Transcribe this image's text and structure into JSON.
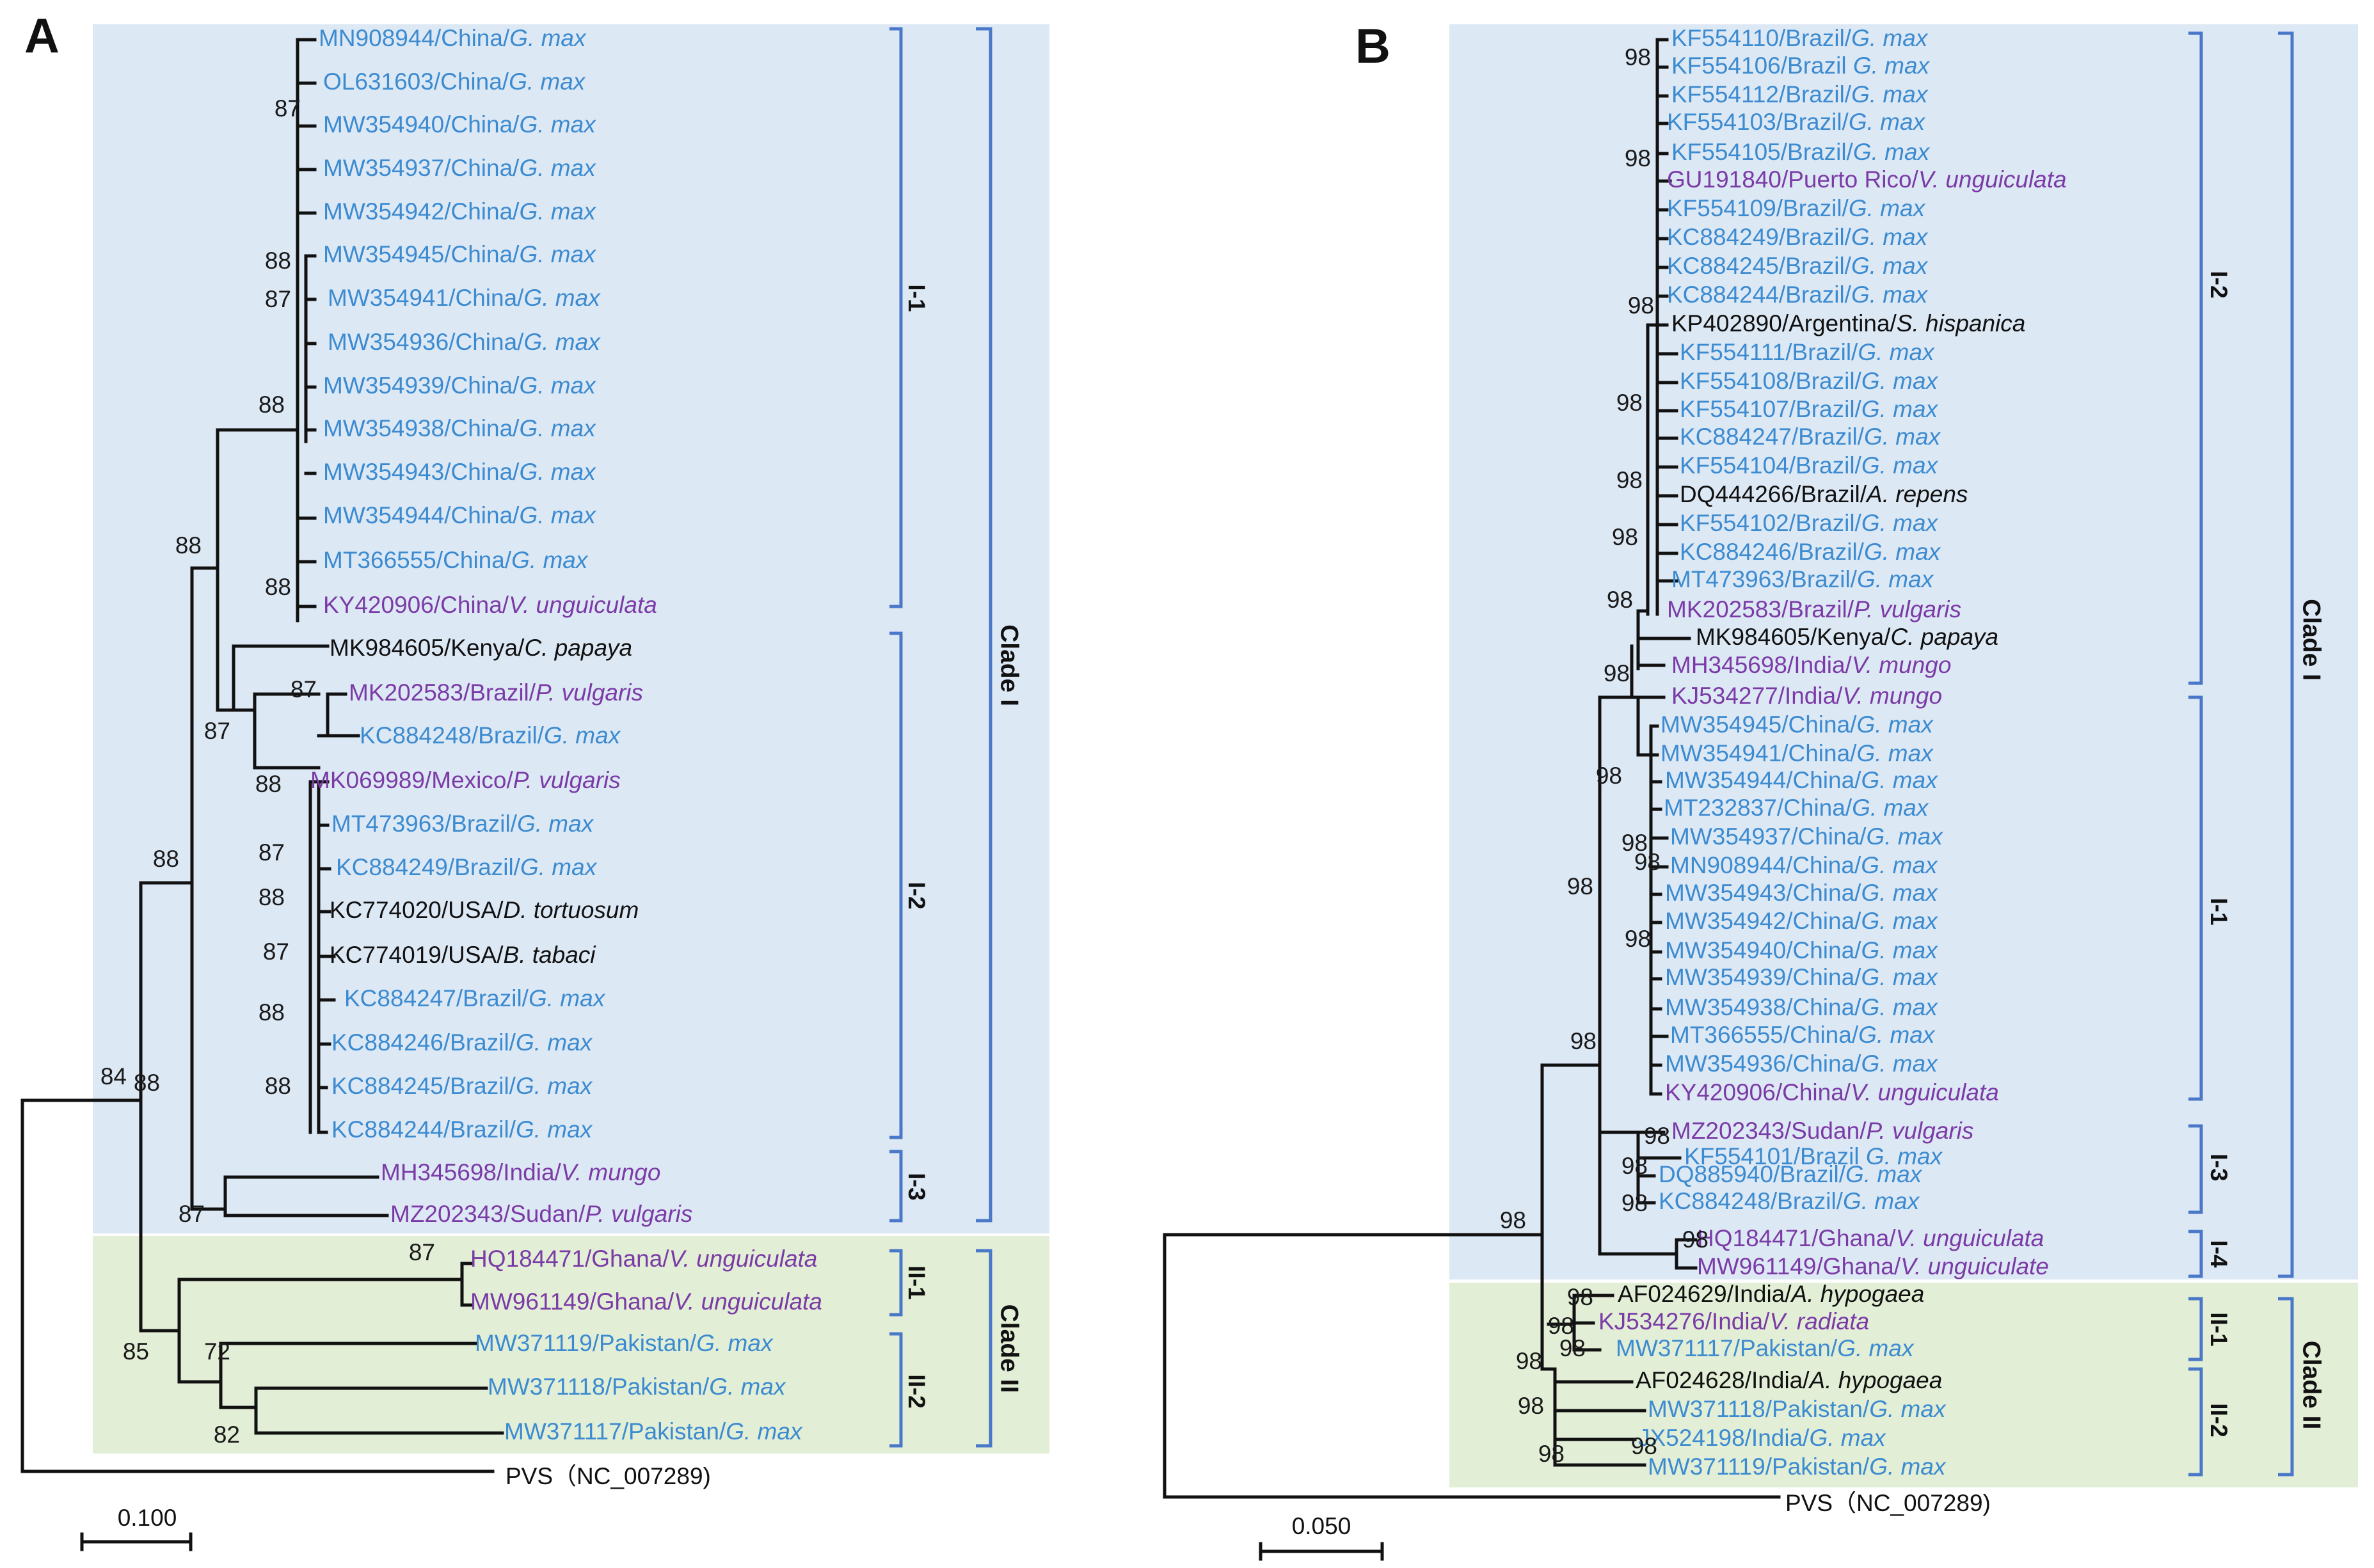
{
  "colors": {
    "china_soy": "#3c8bd0",
    "other_host": "#7b3ba6",
    "black": "#111111",
    "clade1_bg": "#dde8f5",
    "clade2_bg": "#e2eed6",
    "bracket": "#4a78c8"
  },
  "panelA": {
    "letter": "A",
    "scale_label": "0.100",
    "outgroup": "PVS（NC_007289)",
    "tips": [
      {
        "acc": "MN908944/China/",
        "host": "G. max",
        "color": "china_soy"
      },
      {
        "acc": "OL631603/China/",
        "host": "G. max",
        "color": "china_soy"
      },
      {
        "acc": "MW354940/China/",
        "host": "G. max",
        "color": "china_soy"
      },
      {
        "acc": "MW354937/China/",
        "host": "G. max",
        "color": "china_soy"
      },
      {
        "acc": "MW354942/China/",
        "host": "G. max",
        "color": "china_soy"
      },
      {
        "acc": "MW354945/China/",
        "host": "G. max",
        "color": "china_soy"
      },
      {
        "acc": "MW354941/China/",
        "host": "G. max",
        "color": "china_soy"
      },
      {
        "acc": "MW354936/China/",
        "host": "G. max",
        "color": "china_soy"
      },
      {
        "acc": "MW354939/China/",
        "host": "G. max",
        "color": "china_soy"
      },
      {
        "acc": "MW354938/China/",
        "host": "G. max",
        "color": "china_soy"
      },
      {
        "acc": "MW354943/China/",
        "host": "G. max",
        "color": "china_soy"
      },
      {
        "acc": "MW354944/China/",
        "host": "G. max",
        "color": "china_soy"
      },
      {
        "acc": "MT366555/China/",
        "host": "G. max",
        "color": "china_soy"
      },
      {
        "acc": "KY420906/China/",
        "host": "V. unguiculata",
        "color": "other_host"
      },
      {
        "acc": "MK984605/Kenya/",
        "host": "C. papaya",
        "color": "black"
      },
      {
        "acc": "MK202583/Brazil/",
        "host": "P. vulgaris",
        "color": "other_host"
      },
      {
        "acc": "KC884248/Brazil/",
        "host": "G. max",
        "color": "china_soy"
      },
      {
        "acc": "MK069989/Mexico/",
        "host": "P. vulgaris",
        "color": "other_host"
      },
      {
        "acc": "MT473963/Brazil/",
        "host": "G. max",
        "color": "china_soy"
      },
      {
        "acc": "KC884249/Brazil/",
        "host": "G. max",
        "color": "china_soy"
      },
      {
        "acc": "KC774020/USA/",
        "host": "D. tortuosum",
        "color": "black"
      },
      {
        "acc": "KC774019/USA/",
        "host": "B. tabaci",
        "color": "black"
      },
      {
        "acc": "KC884247/Brazil/",
        "host": "G. max",
        "color": "china_soy"
      },
      {
        "acc": "KC884246/Brazil/",
        "host": "G. max",
        "color": "china_soy"
      },
      {
        "acc": "KC884245/Brazil/",
        "host": "G. max",
        "color": "china_soy"
      },
      {
        "acc": "KC884244/Brazil/",
        "host": "G. max",
        "color": "china_soy"
      },
      {
        "acc": "MH345698/India/",
        "host": "V. mungo",
        "color": "other_host"
      },
      {
        "acc": "MZ202343/Sudan/",
        "host": "P. vulgaris",
        "color": "other_host"
      },
      {
        "acc": "HQ184471/Ghana/",
        "host": "V. unguiculata",
        "color": "other_host"
      },
      {
        "acc": "MW961149/Ghana/",
        "host": "V. unguiculata",
        "color": "other_host"
      },
      {
        "acc": "MW371119/Pakistan/",
        "host": "G. max",
        "color": "china_soy"
      },
      {
        "acc": "MW371118/Pakistan/",
        "host": "G. max",
        "color": "china_soy"
      },
      {
        "acc": "MW371117/Pakistan/",
        "host": "G. max",
        "color": "china_soy"
      }
    ],
    "bootstraps": [
      "87",
      "88",
      "87",
      "88",
      "88",
      "88",
      "87",
      "87",
      "88",
      "87",
      "88",
      "88",
      "87",
      "88",
      "88",
      "88",
      "87",
      "72",
      "82",
      "85",
      "84"
    ],
    "groups": [
      "I-1",
      "I-2",
      "I-3",
      "II-1",
      "II-2"
    ],
    "clades": [
      "Clade I",
      "Clade II"
    ]
  },
  "panelB": {
    "letter": "B",
    "scale_label": "0.050",
    "outgroup": "PVS（NC_007289)",
    "tips": [
      {
        "acc": "KF554110/Brazil/",
        "host": "G. max",
        "color": "china_soy"
      },
      {
        "acc": "KF554106/Brazil ",
        "host": "G. max",
        "color": "china_soy"
      },
      {
        "acc": "KF554112/Brazil/",
        "host": "G. max",
        "color": "china_soy"
      },
      {
        "acc": "KF554103/Brazil/",
        "host": "G. max",
        "color": "china_soy"
      },
      {
        "acc": "KF554105/Brazil/",
        "host": "G. max",
        "color": "china_soy"
      },
      {
        "acc": "GU191840/Puerto Rico/",
        "host": "V. unguiculata",
        "color": "other_host"
      },
      {
        "acc": "KF554109/Brazil/",
        "host": "G. max",
        "color": "china_soy"
      },
      {
        "acc": "KC884249/Brazil/",
        "host": "G. max",
        "color": "china_soy"
      },
      {
        "acc": "KC884245/Brazil/",
        "host": "G. max",
        "color": "china_soy"
      },
      {
        "acc": "KC884244/Brazil/",
        "host": "G. max",
        "color": "china_soy"
      },
      {
        "acc": "KP402890/Argentina/",
        "host": "S. hispanica",
        "color": "black"
      },
      {
        "acc": "KF554111/Brazil/",
        "host": "G. max",
        "color": "china_soy"
      },
      {
        "acc": "KF554108/Brazil/",
        "host": "G. max",
        "color": "china_soy"
      },
      {
        "acc": "KF554107/Brazil/",
        "host": "G. max",
        "color": "china_soy"
      },
      {
        "acc": "KC884247/Brazil/",
        "host": "G. max",
        "color": "china_soy"
      },
      {
        "acc": "KF554104/Brazil/",
        "host": "G. max",
        "color": "china_soy"
      },
      {
        "acc": "DQ444266/Brazil/",
        "host": "A. repens",
        "color": "black"
      },
      {
        "acc": "KF554102/Brazil/",
        "host": "G. max",
        "color": "china_soy"
      },
      {
        "acc": "KC884246/Brazil/",
        "host": "G. max",
        "color": "china_soy"
      },
      {
        "acc": "MT473963/Brazil/",
        "host": "G. max",
        "color": "china_soy"
      },
      {
        "acc": "MK202583/Brazil/",
        "host": "P. vulgaris",
        "color": "other_host"
      },
      {
        "acc": "MK984605/Kenya/",
        "host": "C. papaya",
        "color": "black"
      },
      {
        "acc": "MH345698/India/",
        "host": "V. mungo",
        "color": "other_host"
      },
      {
        "acc": "KJ534277/India/",
        "host": "V. mungo",
        "color": "other_host"
      },
      {
        "acc": "MW354945/China/",
        "host": "G. max",
        "color": "china_soy"
      },
      {
        "acc": "MW354941/China/",
        "host": "G. max",
        "color": "china_soy"
      },
      {
        "acc": "MW354944/China/",
        "host": "G. max",
        "color": "china_soy"
      },
      {
        "acc": "MT232837/China/",
        "host": "G. max",
        "color": "china_soy"
      },
      {
        "acc": "MW354937/China/",
        "host": "G. max",
        "color": "china_soy"
      },
      {
        "acc": "MN908944/China/",
        "host": "G. max",
        "color": "china_soy"
      },
      {
        "acc": "MW354943/China/",
        "host": "G. max",
        "color": "china_soy"
      },
      {
        "acc": "MW354942/China/",
        "host": "G. max",
        "color": "china_soy"
      },
      {
        "acc": "MW354940/China/",
        "host": "G. max",
        "color": "china_soy"
      },
      {
        "acc": "MW354939/China/",
        "host": "G. max",
        "color": "china_soy"
      },
      {
        "acc": "MW354938/China/",
        "host": "G. max",
        "color": "china_soy"
      },
      {
        "acc": "MT366555/China/",
        "host": "G. max",
        "color": "china_soy"
      },
      {
        "acc": "MW354936/China/",
        "host": "G. max",
        "color": "china_soy"
      },
      {
        "acc": "KY420906/China/",
        "host": "V. unguiculata",
        "color": "other_host"
      },
      {
        "acc": "MZ202343/Sudan/",
        "host": "P. vulgaris",
        "color": "other_host"
      },
      {
        "acc": "KF554101/Brazil ",
        "host": "G. max",
        "color": "china_soy"
      },
      {
        "acc": "DQ885940/Brazil/",
        "host": "G. max",
        "color": "china_soy"
      },
      {
        "acc": "KC884248/Brazil/",
        "host": "G. max",
        "color": "china_soy"
      },
      {
        "acc": "HQ184471/Ghana/",
        "host": "V. unguiculata",
        "color": "other_host"
      },
      {
        "acc": "MW961149/Ghana/",
        "host": "V. unguiculate",
        "color": "other_host"
      },
      {
        "acc": "AF024629/India/",
        "host": "A. hypogaea",
        "color": "black"
      },
      {
        "acc": "KJ534276/India/",
        "host": "V. radiata",
        "color": "other_host"
      },
      {
        "acc": "MW371117/Pakistan/",
        "host": "G. max",
        "color": "china_soy"
      },
      {
        "acc": "AF024628/India/",
        "host": "A. hypogaea",
        "color": "black"
      },
      {
        "acc": "MW371118/Pakistan/",
        "host": "G. max",
        "color": "china_soy"
      },
      {
        "acc": "JX524198/India/",
        "host": "G. max",
        "color": "china_soy"
      },
      {
        "acc": "MW371119/Pakistan/",
        "host": "G. max",
        "color": "china_soy"
      }
    ],
    "bootstraps": [
      "98",
      "98",
      "98",
      "98",
      "98",
      "98",
      "98",
      "98",
      "98",
      "98",
      "98",
      "98",
      "98",
      "98",
      "98",
      "98",
      "98",
      "98",
      "98",
      "98",
      "98",
      "98",
      "98",
      "98",
      "98",
      "98"
    ],
    "groups": [
      "I-2",
      "I-1",
      "I-3",
      "I-4",
      "II-1",
      "II-2"
    ],
    "clades": [
      "Clade I",
      "Clade II"
    ]
  }
}
